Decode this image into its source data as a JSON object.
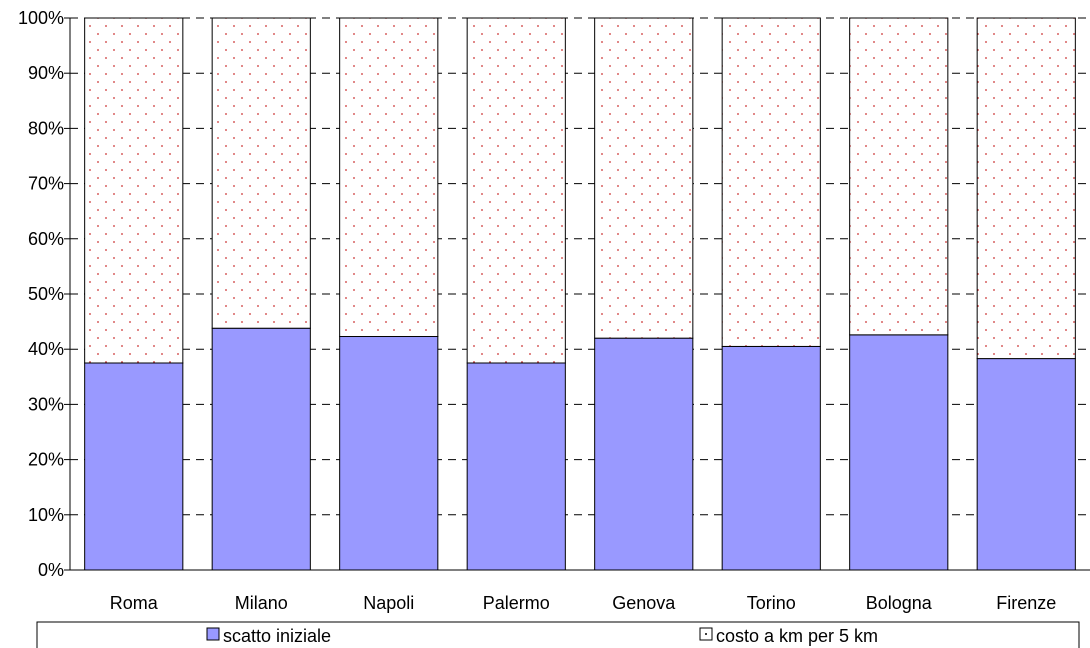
{
  "chart_data": {
    "type": "bar",
    "stacked": true,
    "percent": true,
    "categories": [
      "Roma",
      "Milano",
      "Napoli",
      "Palermo",
      "Genova",
      "Torino",
      "Bologna",
      "Firenze"
    ],
    "series": [
      {
        "name": "scatto iniziale",
        "values": [
          37.5,
          43.8,
          42.3,
          37.5,
          42.0,
          40.5,
          42.6,
          38.3
        ],
        "color": "#9999ff"
      },
      {
        "name": "costo a km per 5 km",
        "values": [
          62.5,
          56.2,
          57.7,
          62.5,
          58.0,
          59.5,
          57.4,
          61.7
        ],
        "color": "#ffffff",
        "pattern_color": "#cc3333"
      }
    ],
    "yticks": [
      "0%",
      "10%",
      "20%",
      "30%",
      "40%",
      "50%",
      "60%",
      "70%",
      "80%",
      "90%",
      "100%"
    ],
    "ylim": [
      0,
      100
    ],
    "grid": "dashed-horizontal",
    "legend": "bottom"
  }
}
